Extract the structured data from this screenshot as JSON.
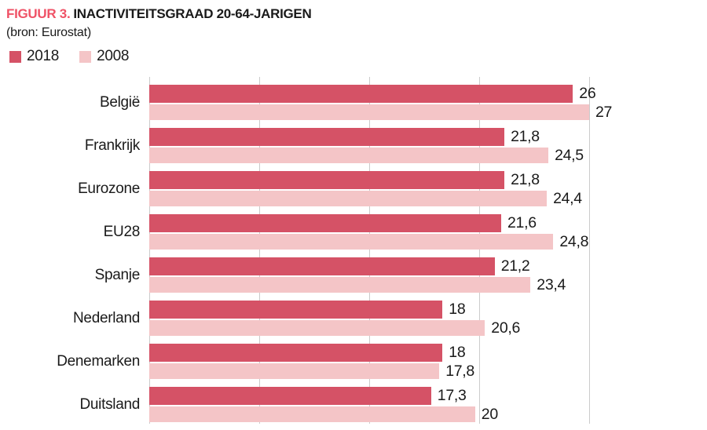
{
  "header": {
    "figure_label": "FIGUUR 3.",
    "title": "INACTIVITEITSGRAAD 20-64-JARIGEN",
    "source": "(bron: Eurostat)"
  },
  "colors": {
    "series_2018": "#d55266",
    "series_2008": "#f4c5c7",
    "figure_label_accent": "#ef5266",
    "text": "#1a1a1a",
    "gridline": "#cbcbcb",
    "background": "#ffffff"
  },
  "legend": {
    "position": "top-left",
    "items": [
      {
        "label": "2018",
        "color": "#d55266"
      },
      {
        "label": "2008",
        "color": "#f4c5c7"
      }
    ]
  },
  "chart_data": {
    "type": "bar",
    "orientation": "horizontal",
    "title": "FIGUUR 3. INACTIVITEITSGRAAD 20-64-JARIGEN",
    "subtitle": "(bron: Eurostat)",
    "xlabel": "",
    "ylabel": "",
    "xlim": [
      0,
      27
    ],
    "grid": true,
    "gridline_count": 5,
    "value_labels": true,
    "decimal_separator": ",",
    "categories": [
      "België",
      "Frankrijk",
      "Eurozone",
      "EU28",
      "Spanje",
      "Nederland",
      "Denemarken",
      "Duitsland"
    ],
    "series": [
      {
        "name": "2018",
        "color": "#d55266",
        "values": [
          26,
          21.8,
          21.8,
          21.6,
          21.2,
          18,
          18,
          17.3
        ],
        "labels": [
          "26",
          "21,8",
          "21,8",
          "21,6",
          "21,2",
          "18",
          "18",
          "17,3"
        ]
      },
      {
        "name": "2008",
        "color": "#f4c5c7",
        "values": [
          27,
          24.5,
          24.4,
          24.8,
          23.4,
          20.6,
          17.8,
          20
        ],
        "labels": [
          "27",
          "24,5",
          "24,4",
          "24,8",
          "23,4",
          "20,6",
          "17,8",
          "20"
        ]
      }
    ]
  }
}
